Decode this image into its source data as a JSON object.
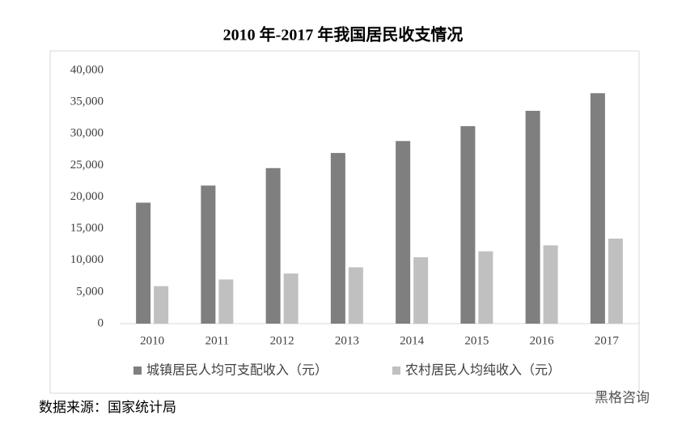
{
  "chart_data": {
    "type": "bar",
    "title": "2010 年-2017 年我国居民收支情况",
    "categories": [
      "2010",
      "2011",
      "2012",
      "2013",
      "2014",
      "2015",
      "2016",
      "2017"
    ],
    "series": [
      {
        "name": "城镇居民人均可支配收入（元）",
        "color": "#7f7f7f",
        "values": [
          19109,
          21810,
          24565,
          26955,
          28844,
          31195,
          33616,
          36396
        ]
      },
      {
        "name": "农村居民人均纯收入（元）",
        "color": "#c0c0c0",
        "values": [
          5919,
          6977,
          7917,
          8896,
          10489,
          11422,
          12363,
          13432
        ]
      }
    ],
    "ylim": [
      0,
      40000
    ],
    "yticks": [
      0,
      {
        "value": 5000,
        "label": "5,000"
      },
      {
        "value": 10000,
        "label": "10,000"
      },
      {
        "value": 15000,
        "label": "15,000"
      },
      {
        "value": 20000,
        "label": "20,000"
      },
      {
        "value": 25000,
        "label": "25,000"
      },
      {
        "value": 30000,
        "label": "30,000"
      },
      {
        "value": 35000,
        "label": "35,000"
      },
      {
        "value": 40000,
        "label": "40,000"
      }
    ],
    "grid": false,
    "source": "数据来源：国家统计局"
  },
  "watermark": "黑格咨询"
}
